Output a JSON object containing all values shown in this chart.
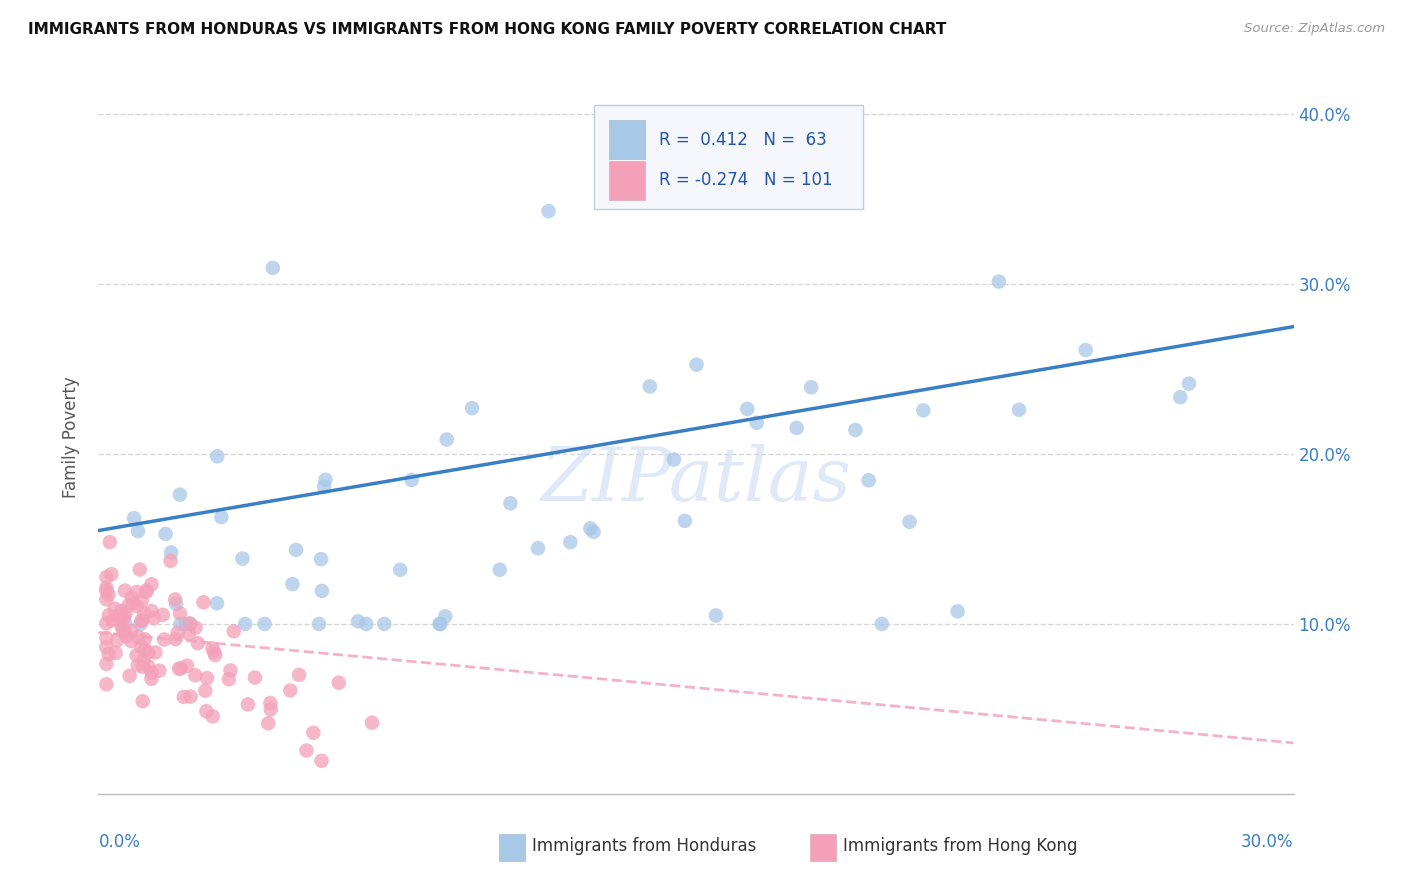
{
  "title": "IMMIGRANTS FROM HONDURAS VS IMMIGRANTS FROM HONG KONG FAMILY POVERTY CORRELATION CHART",
  "source": "Source: ZipAtlas.com",
  "ylabel": "Family Poverty",
  "xlim": [
    0.0,
    0.3
  ],
  "ylim": [
    0.0,
    0.42
  ],
  "ytick_vals": [
    0.1,
    0.2,
    0.3,
    0.4
  ],
  "ytick_labels": [
    "10.0%",
    "20.0%",
    "30.0%",
    "40.0%"
  ],
  "color_honduras": "#A8C8E8",
  "color_hongkong": "#F4A0B8",
  "line_color_honduras": "#3A7EC6",
  "line_color_hongkong": "#F0A0B8",
  "watermark": "ZIPatlas",
  "background_color": "#FFFFFF",
  "grid_color": "#CCCCCC",
  "legend_box_color": "#E8EEF8",
  "legend_border_color": "#AABBDD",
  "title_color": "#111111",
  "source_color": "#999999",
  "ylabel_color": "#555555",
  "ytick_color": "#3A7EC6",
  "xtick_color": "#3A7EC6",
  "bottom_legend_color": "#333333"
}
